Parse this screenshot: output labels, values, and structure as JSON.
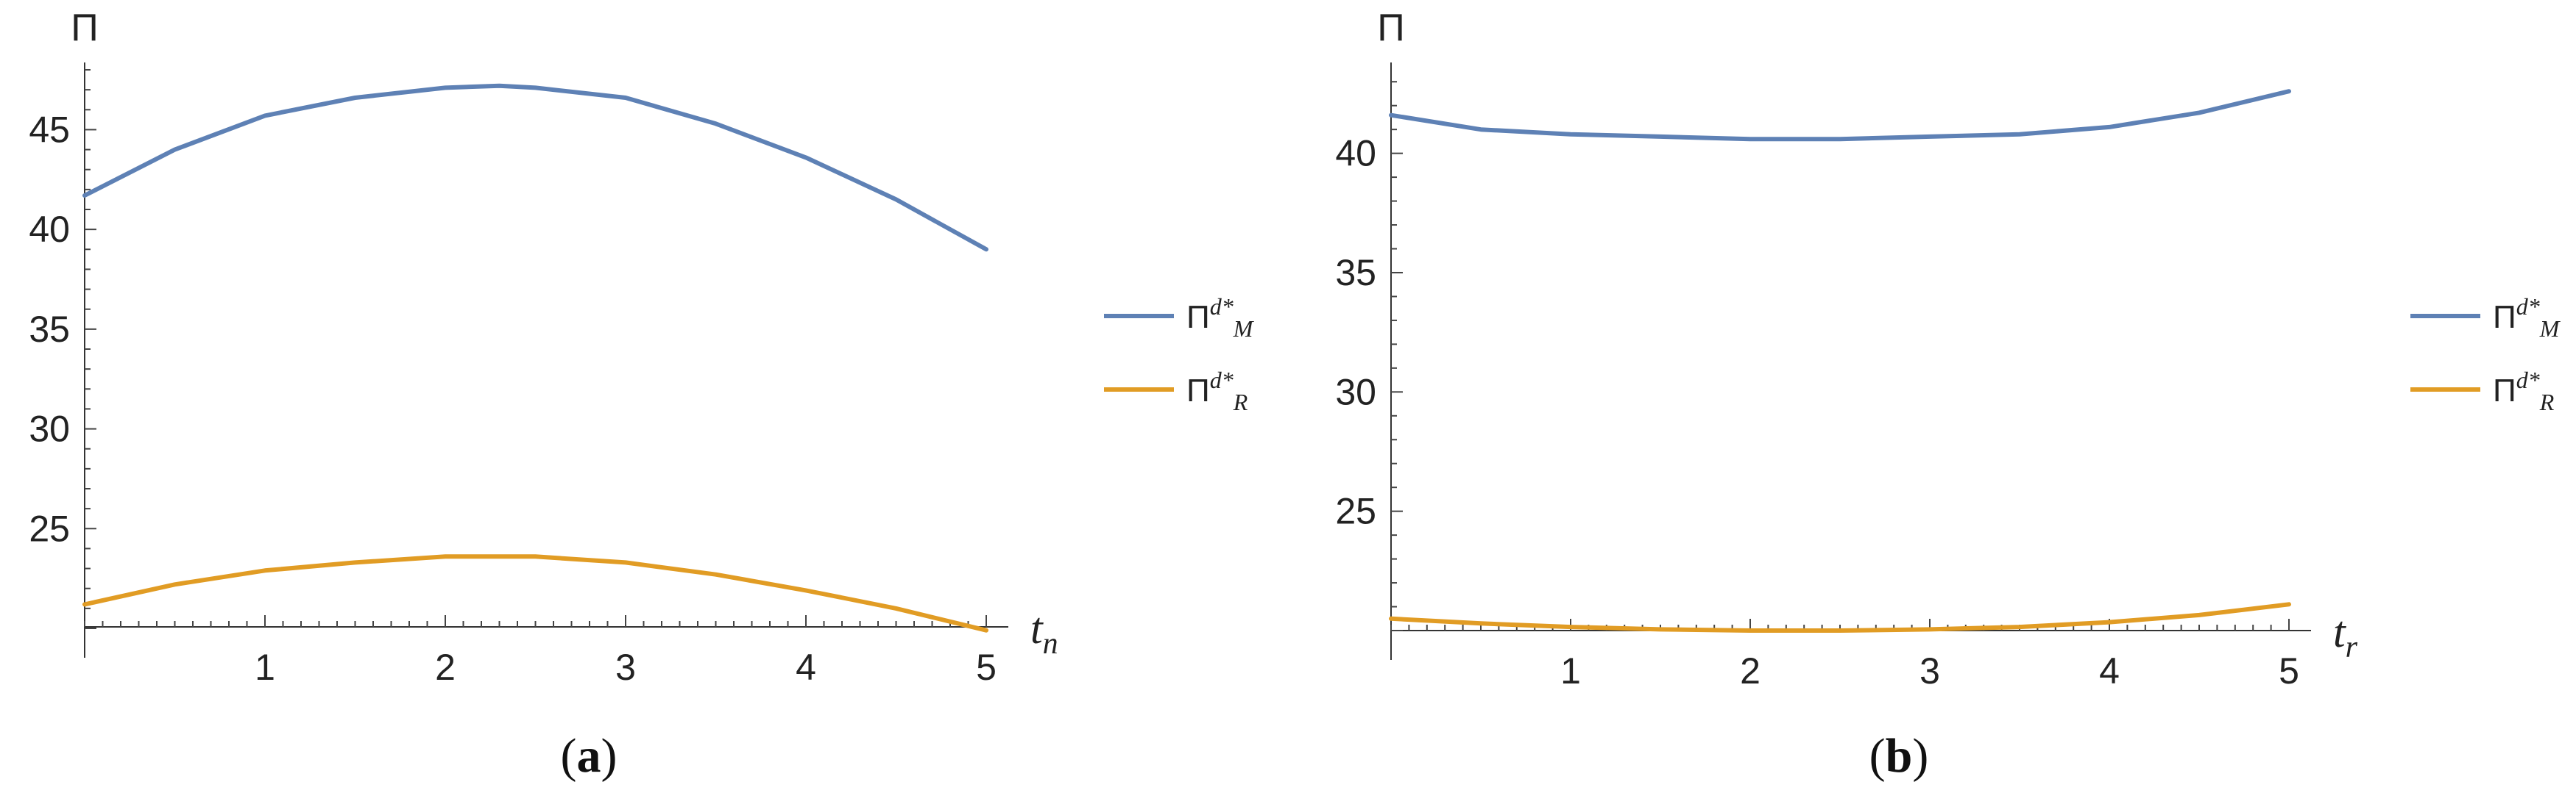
{
  "chart_data": [
    {
      "type": "line",
      "ylabel": "Π",
      "xlabel_main": "t",
      "xlabel_sub": "n",
      "caption_letter": "a",
      "x_ticks": [
        "1",
        "2",
        "3",
        "4",
        "5"
      ],
      "y_ticks": [
        "25",
        "30",
        "35",
        "40",
        "45"
      ],
      "xlim": [
        0,
        5
      ],
      "ylim": [
        20,
        48
      ],
      "grid": false,
      "legend_position": "right",
      "series": [
        {
          "name_main": "Π",
          "name_sup": "d*",
          "name_sub": "M",
          "color": "#5e81b5",
          "x": [
            0,
            0.5,
            1,
            1.5,
            2,
            2.3,
            2.5,
            3,
            3.5,
            4,
            4.5,
            5
          ],
          "y": [
            41.7,
            44.0,
            45.7,
            46.6,
            47.1,
            47.2,
            47.1,
            46.6,
            45.3,
            43.6,
            41.5,
            39.0
          ]
        },
        {
          "name_main": "Π",
          "name_sup": "d*",
          "name_sub": "R",
          "color": "#e19c24",
          "x": [
            0,
            0.5,
            1,
            1.5,
            2,
            2.3,
            2.5,
            3,
            3.5,
            4,
            4.5,
            5
          ],
          "y": [
            21.2,
            22.2,
            22.9,
            23.3,
            23.6,
            23.6,
            23.6,
            23.3,
            22.7,
            21.9,
            21.0,
            19.9
          ]
        }
      ]
    },
    {
      "type": "line",
      "ylabel": "Π",
      "xlabel_main": "t",
      "xlabel_sub": "r",
      "caption_letter": "b",
      "x_ticks": [
        "1",
        "2",
        "3",
        "4",
        "5"
      ],
      "y_ticks": [
        "25",
        "30",
        "35",
        "40"
      ],
      "xlim": [
        0,
        5
      ],
      "ylim": [
        20,
        43.5
      ],
      "grid": false,
      "legend_position": "right",
      "series": [
        {
          "name_main": "Π",
          "name_sup": "d*",
          "name_sub": "M",
          "color": "#5e81b5",
          "x": [
            0,
            0.5,
            1,
            1.5,
            2,
            2.3,
            2.5,
            3,
            3.5,
            4,
            4.5,
            5
          ],
          "y": [
            41.6,
            41.0,
            40.8,
            40.7,
            40.6,
            40.6,
            40.6,
            40.7,
            40.8,
            41.1,
            41.7,
            42.6
          ]
        },
        {
          "name_main": "Π",
          "name_sup": "d*",
          "name_sub": "R",
          "color": "#e19c24",
          "x": [
            0,
            0.5,
            1,
            1.5,
            2,
            2.3,
            2.5,
            3,
            3.5,
            4,
            4.5,
            5
          ],
          "y": [
            20.5,
            20.3,
            20.15,
            20.05,
            20.0,
            20.0,
            20.0,
            20.05,
            20.15,
            20.35,
            20.65,
            21.1
          ]
        }
      ]
    }
  ]
}
